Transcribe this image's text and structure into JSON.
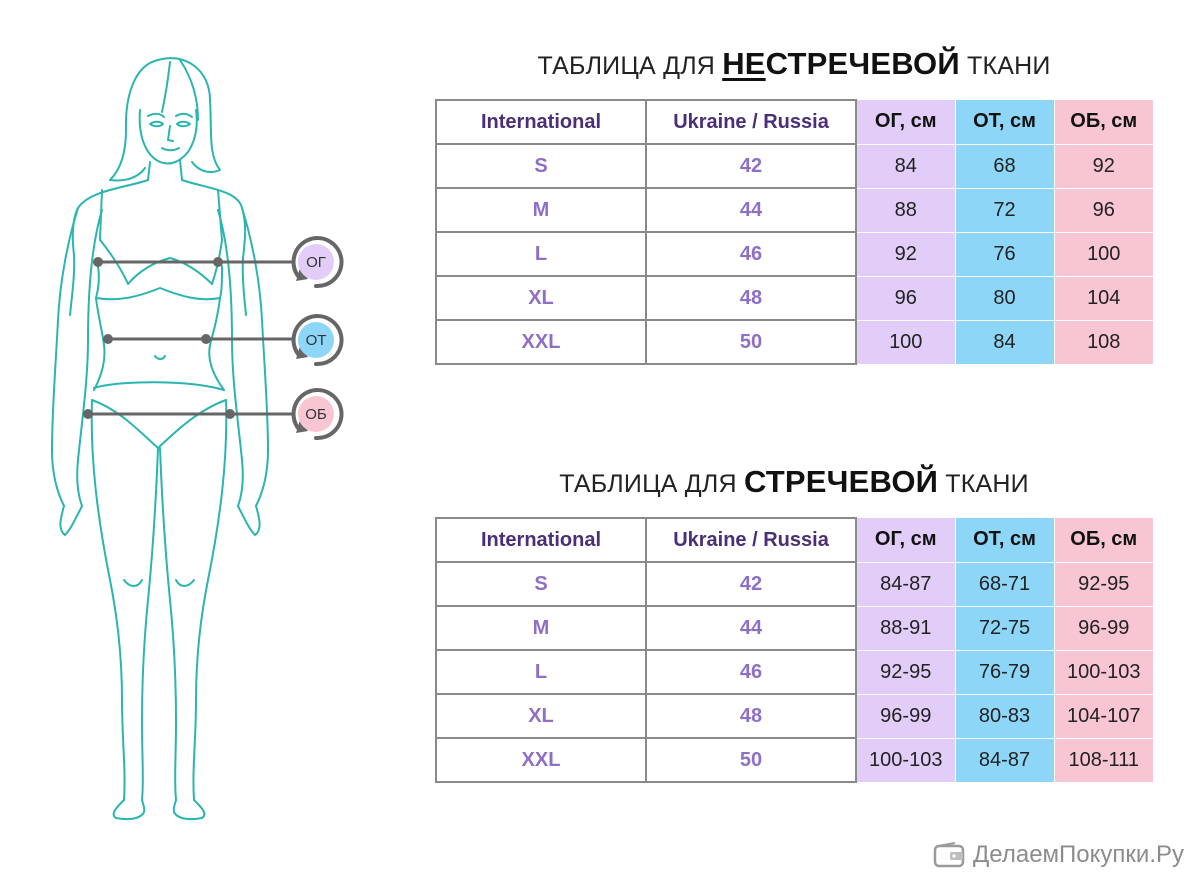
{
  "table1": {
    "title_pre": "ТАБЛИЦА ДЛЯ ",
    "title_bold_underlined": "НЕ",
    "title_bold": "СТРЕЧЕВОЙ",
    "title_post": " ТКАНИ",
    "headers": [
      "International",
      "Ukraine / Russia",
      "ОГ, см",
      "ОТ, см",
      "ОБ, см"
    ],
    "rows": [
      [
        "S",
        "42",
        "84",
        "68",
        "92"
      ],
      [
        "M",
        "44",
        "88",
        "72",
        "96"
      ],
      [
        "L",
        "46",
        "92",
        "76",
        "100"
      ],
      [
        "XL",
        "48",
        "96",
        "80",
        "104"
      ],
      [
        "XXL",
        "50",
        "100",
        "84",
        "108"
      ]
    ]
  },
  "table2": {
    "title_pre": "ТАБЛИЦА ДЛЯ ",
    "title_bold": "СТРЕЧЕВОЙ",
    "title_post": " ТКАНИ",
    "headers": [
      "International",
      "Ukraine / Russia",
      "ОГ, см",
      "ОТ, см",
      "ОБ, см"
    ],
    "rows": [
      [
        "S",
        "42",
        "84-87",
        "68-71",
        "92-95"
      ],
      [
        "M",
        "44",
        "88-91",
        "72-75",
        "96-99"
      ],
      [
        "L",
        "46",
        "92-95",
        "76-79",
        "100-103"
      ],
      [
        "XL",
        "48",
        "96-99",
        "80-83",
        "104-107"
      ],
      [
        "XXL",
        "50",
        "100-103",
        "84-87",
        "108-111"
      ]
    ]
  },
  "measures": {
    "og": "ОГ",
    "ot": "ОТ",
    "ob": "ОБ"
  },
  "colors": {
    "figure": "#2bb5b0",
    "og": "#e2cdf9",
    "ot": "#8dd6f7",
    "ob": "#f7c6d2",
    "lines": "#666666"
  },
  "watermark": {
    "text": "ДелаемПокупки.Ру",
    "icon": "wallet-icon"
  }
}
